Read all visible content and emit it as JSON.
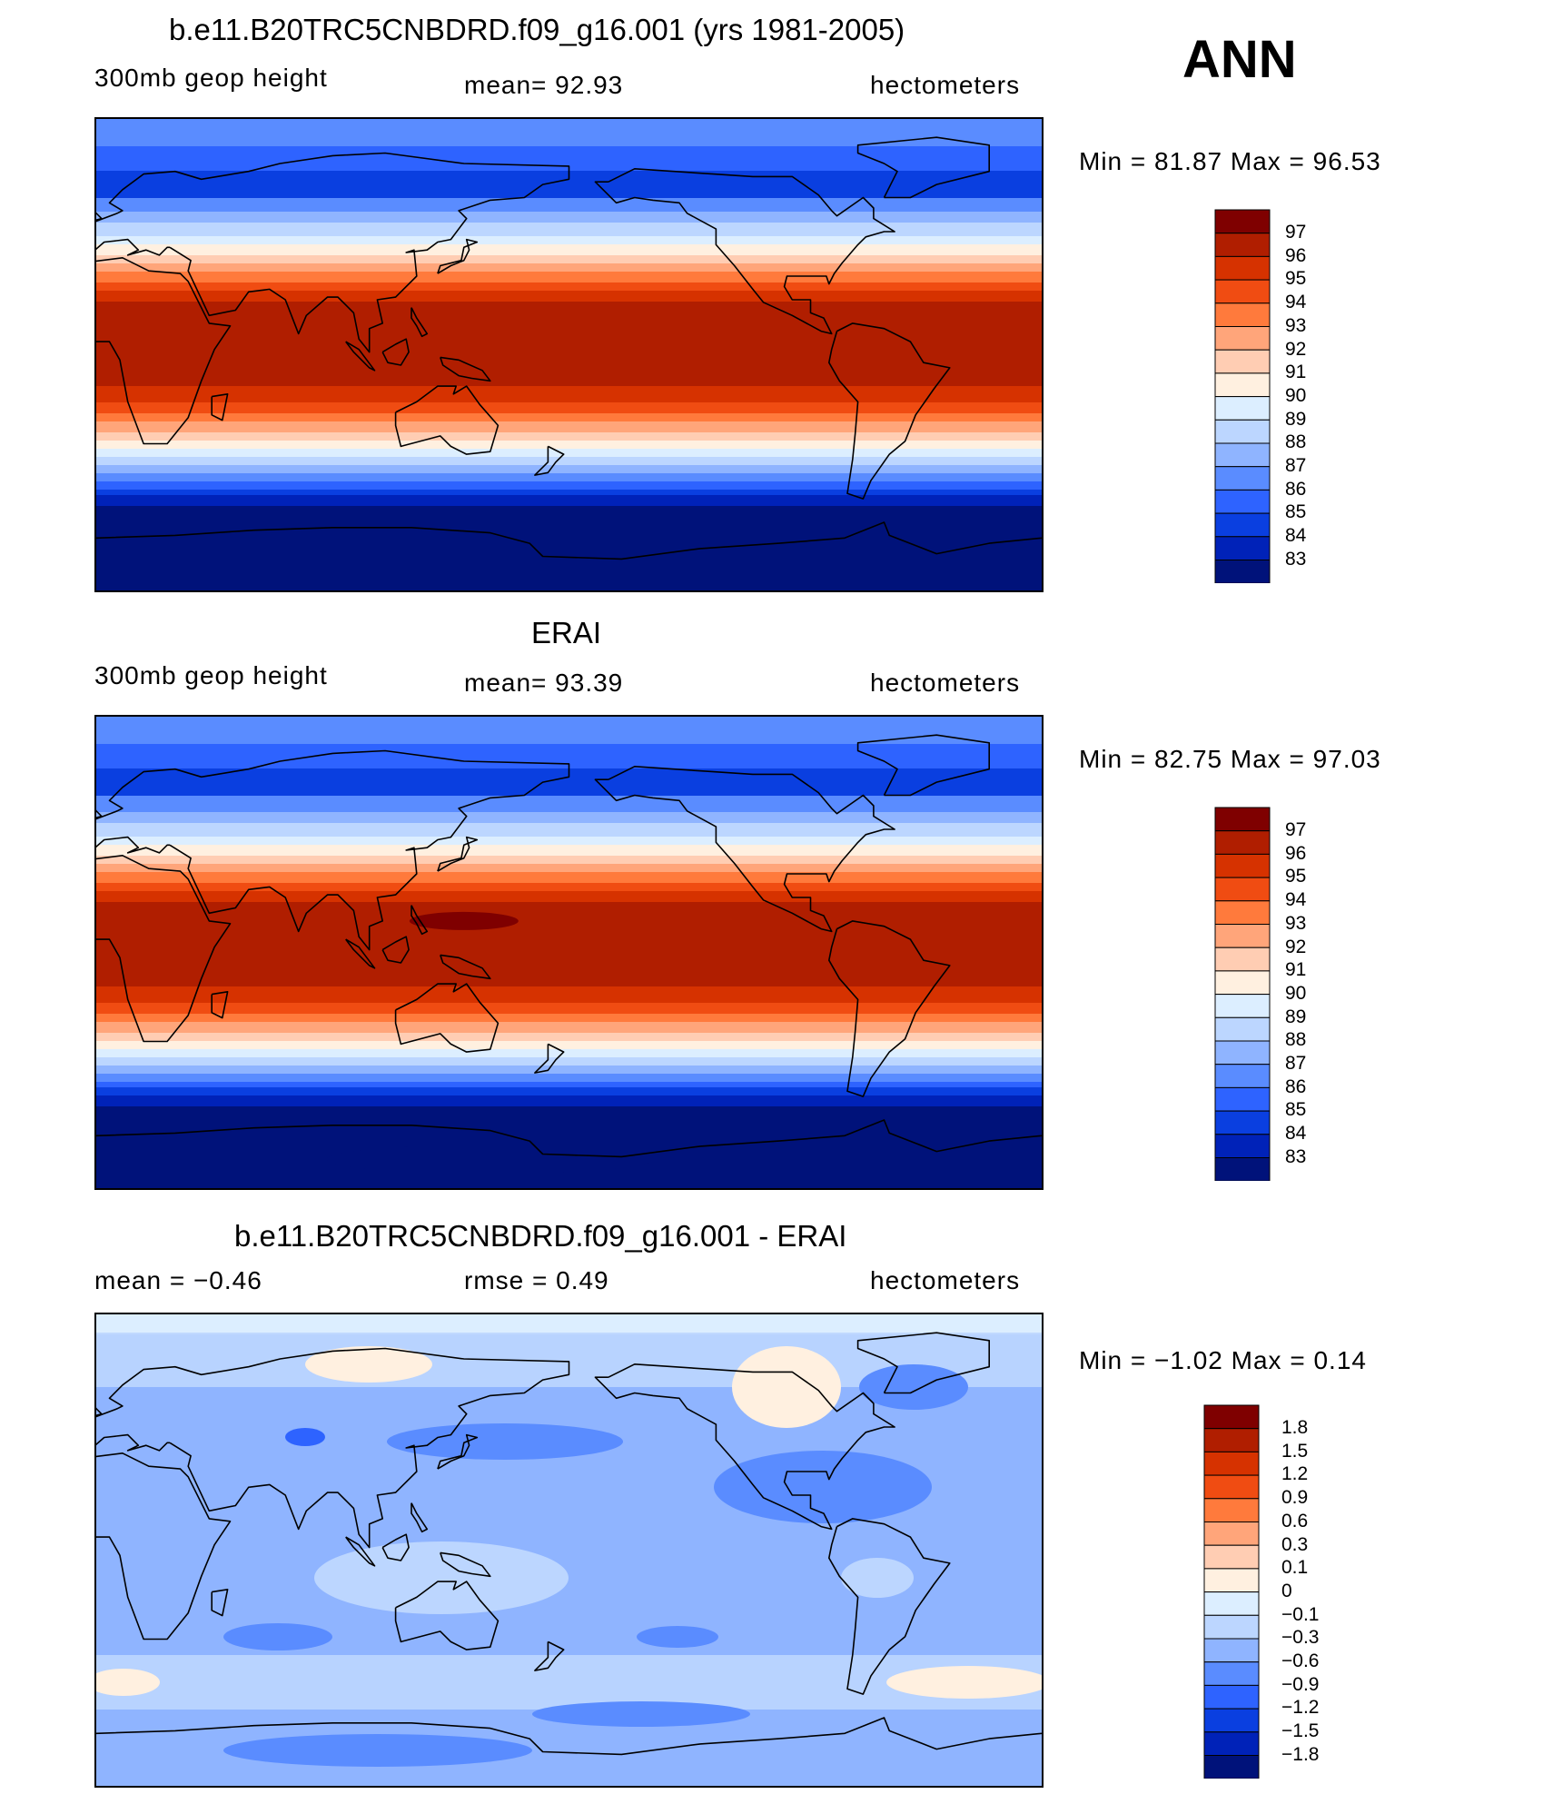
{
  "season": "ANN",
  "panels": [
    {
      "id": "model",
      "title": "b.e11.B20TRC5CNBDRD.f09_g16.001 (yrs 1981-2005)",
      "left_label": "300mb  geop  height",
      "center_label": "mean=   92.93",
      "right_label": "hectometers",
      "minmax": "Min =   81.87  Max =   96.53",
      "colorbar_labels": [
        "97",
        "96",
        "95",
        "94",
        "93",
        "92",
        "91",
        "90",
        "89",
        "88",
        "87",
        "86",
        "85",
        "84",
        "83"
      ]
    },
    {
      "id": "obs",
      "title": "ERAI",
      "left_label": "300mb  geop  height",
      "center_label": "mean=   93.39",
      "right_label": "hectometers",
      "minmax": "Min =   82.75  Max =   97.03",
      "colorbar_labels": [
        "97",
        "96",
        "95",
        "94",
        "93",
        "92",
        "91",
        "90",
        "89",
        "88",
        "87",
        "86",
        "85",
        "84",
        "83"
      ]
    },
    {
      "id": "diff",
      "title": "b.e11.B20TRC5CNBDRD.f09_g16.001 - ERAI",
      "left_label": "mean =   −0.46",
      "center_label": "rmse =    0.49",
      "right_label": "hectometers",
      "minmax": "Min =   −1.02  Max =    0.14",
      "colorbar_labels": [
        "1.8",
        "1.5",
        "1.2",
        "0.9",
        "0.6",
        "0.3",
        "0.1",
        "0",
        "−0.1",
        "−0.3",
        "−0.6",
        "−0.9",
        "−1.2",
        "−1.5",
        "−1.8"
      ]
    }
  ],
  "colors": {
    "palette": [
      "#7f0000",
      "#b01e00",
      "#d63200",
      "#f04c12",
      "#ff7a3c",
      "#ffa57a",
      "#ffcdb3",
      "#fff0e0",
      "#dceeff",
      "#bcd6ff",
      "#8fb4ff",
      "#5a8cff",
      "#2e63ff",
      "#0a3fe0",
      "#0022b8",
      "#00127a"
    ],
    "coast": "#000000"
  }
}
